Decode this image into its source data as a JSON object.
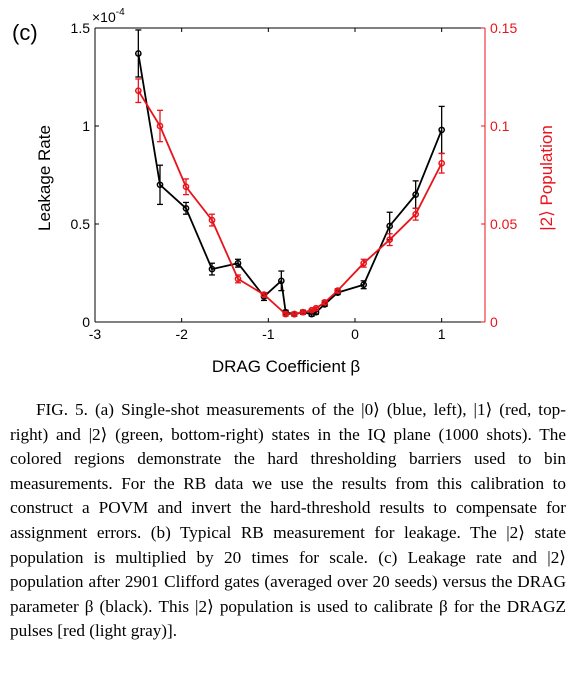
{
  "figure": {
    "panel_label": "(c)",
    "chart_data": {
      "type": "line",
      "xlabel": "DRAG Coefficient β",
      "xlim": [
        -3,
        1.5
      ],
      "xticks": [
        "-3",
        "-2",
        "-1",
        "0",
        "1"
      ],
      "left_axis": {
        "label": "Leakage Rate",
        "exponent": "×10",
        "exponent_power": "-4",
        "ylim": [
          0,
          1.5
        ],
        "ticks": [
          "0",
          "0.5",
          "1",
          "1.5"
        ],
        "color": "#000000"
      },
      "right_axis": {
        "label": "|2⟩ Population",
        "ylim": [
          0,
          0.15
        ],
        "ticks": [
          "0",
          "0.05",
          "0.1",
          "0.15"
        ],
        "color": "#e8141b"
      },
      "series": [
        {
          "axis": "left",
          "color": "#000000",
          "points": [
            {
              "x": -2.5,
              "y": 1.37,
              "err": 0.12
            },
            {
              "x": -2.25,
              "y": 0.7,
              "err": 0.1
            },
            {
              "x": -1.95,
              "y": 0.58,
              "err": 0.03
            },
            {
              "x": -1.65,
              "y": 0.27,
              "err": 0.03
            },
            {
              "x": -1.35,
              "y": 0.3,
              "err": 0.02
            },
            {
              "x": -1.05,
              "y": 0.13,
              "err": 0.02
            },
            {
              "x": -0.85,
              "y": 0.21,
              "err": 0.05
            },
            {
              "x": -0.8,
              "y": 0.05,
              "err": 0.01
            },
            {
              "x": -0.7,
              "y": 0.04,
              "err": 0.01
            },
            {
              "x": -0.6,
              "y": 0.05,
              "err": 0.01
            },
            {
              "x": -0.5,
              "y": 0.04,
              "err": 0.01
            },
            {
              "x": -0.45,
              "y": 0.05,
              "err": 0.01
            },
            {
              "x": -0.35,
              "y": 0.09,
              "err": 0.01
            },
            {
              "x": -0.2,
              "y": 0.15,
              "err": 0.01
            },
            {
              "x": 0.1,
              "y": 0.19,
              "err": 0.02
            },
            {
              "x": 0.4,
              "y": 0.49,
              "err": 0.07
            },
            {
              "x": 0.7,
              "y": 0.65,
              "err": 0.07
            },
            {
              "x": 1.0,
              "y": 0.98,
              "err": 0.12
            }
          ]
        },
        {
          "axis": "right",
          "color": "#e8141b",
          "points": [
            {
              "x": -2.5,
              "y": 0.118,
              "err": 0.006
            },
            {
              "x": -2.25,
              "y": 0.1,
              "err": 0.008
            },
            {
              "x": -1.95,
              "y": 0.069,
              "err": 0.004
            },
            {
              "x": -1.65,
              "y": 0.052,
              "err": 0.003
            },
            {
              "x": -1.35,
              "y": 0.022,
              "err": 0.002
            },
            {
              "x": -1.05,
              "y": 0.014,
              "err": 0.001
            },
            {
              "x": -0.8,
              "y": 0.004,
              "err": 0.001
            },
            {
              "x": -0.7,
              "y": 0.004,
              "err": 0.0005
            },
            {
              "x": -0.6,
              "y": 0.005,
              "err": 0.0005
            },
            {
              "x": -0.5,
              "y": 0.006,
              "err": 0.0005
            },
            {
              "x": -0.45,
              "y": 0.007,
              "err": 0.0005
            },
            {
              "x": -0.35,
              "y": 0.01,
              "err": 0.001
            },
            {
              "x": -0.2,
              "y": 0.016,
              "err": 0.001
            },
            {
              "x": 0.1,
              "y": 0.03,
              "err": 0.002
            },
            {
              "x": 0.4,
              "y": 0.042,
              "err": 0.003
            },
            {
              "x": 0.7,
              "y": 0.055,
              "err": 0.003
            },
            {
              "x": 1.0,
              "y": 0.081,
              "err": 0.005
            }
          ]
        }
      ]
    }
  },
  "caption": "FIG. 5. (a) Single-shot measurements of the |0⟩ (blue, left), |1⟩ (red, top-right) and |2⟩ (green, bottom-right) states in the IQ plane (1000 shots). The colored regions demonstrate the hard thresholding barriers used to bin measurements. For the RB data we use the results from this calibration to construct a POVM and invert the hard-threshold results to compensate for assignment errors. (b) Typical RB measurement for leakage. The |2⟩ state population is multiplied by 20 times for scale. (c) Leakage rate and |2⟩ population after 2901 Clifford gates (averaged over 20 seeds) versus the DRAG parameter β (black). This |2⟩ population is used to calibrate β for the DRAGZ pulses [red (light gray)]."
}
